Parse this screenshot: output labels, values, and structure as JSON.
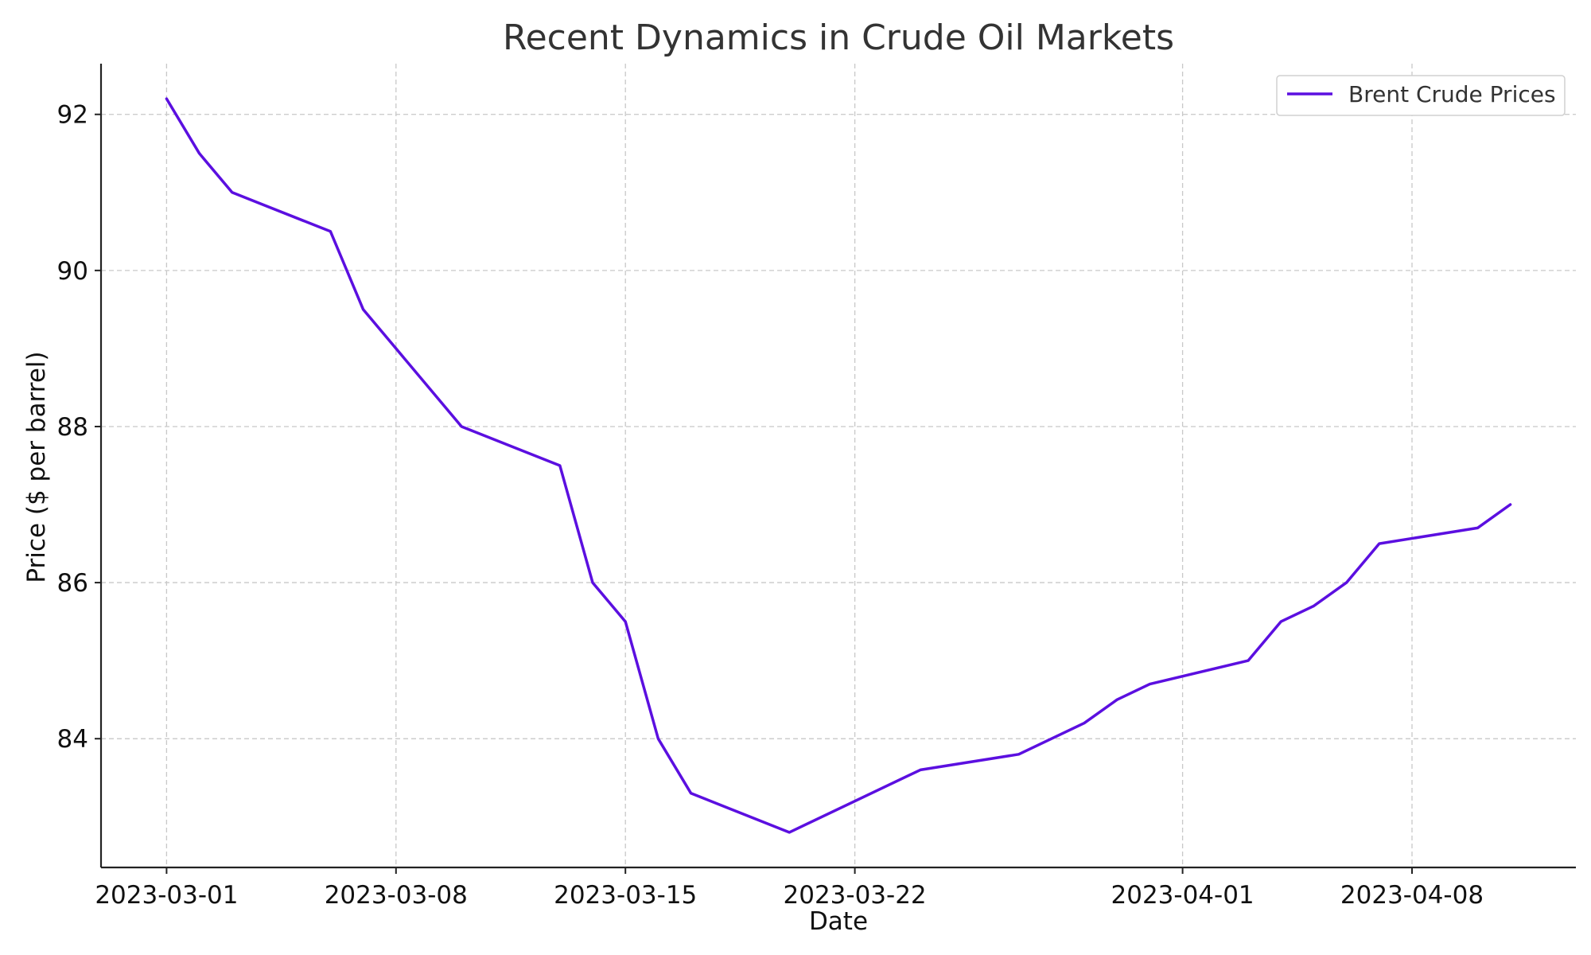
{
  "chart_data": {
    "type": "line",
    "title": "Recent Dynamics in Crude Oil Markets",
    "xlabel": "Date",
    "ylabel": "Price ($ per barrel)",
    "x_tick_labels": [
      "2023-03-01",
      "2023-03-08",
      "2023-03-15",
      "2023-03-22",
      "2023-04-01",
      "2023-04-08"
    ],
    "y_tick_labels": [
      "84",
      "86",
      "88",
      "90",
      "92"
    ],
    "xlim": [
      "2023-02-27",
      "2023-04-13"
    ],
    "ylim": [
      82.35,
      92.65
    ],
    "grid": true,
    "legend_position": "upper right",
    "series": [
      {
        "name": "Brent Crude Prices",
        "color": "#5b0fe0",
        "x": [
          "2023-03-01",
          "2023-03-02",
          "2023-03-03",
          "2023-03-06",
          "2023-03-07",
          "2023-03-08",
          "2023-03-10",
          "2023-03-13",
          "2023-03-14",
          "2023-03-15",
          "2023-03-16",
          "2023-03-17",
          "2023-03-20",
          "2023-03-24",
          "2023-03-27",
          "2023-03-29",
          "2023-03-30",
          "2023-03-31",
          "2023-04-03",
          "2023-04-04",
          "2023-04-05",
          "2023-04-06",
          "2023-04-07",
          "2023-04-10",
          "2023-04-11"
        ],
        "values": [
          92.2,
          91.5,
          91.0,
          90.5,
          89.5,
          89.0,
          88.0,
          87.5,
          86.0,
          85.5,
          84.0,
          83.3,
          82.8,
          83.6,
          83.8,
          84.2,
          84.5,
          84.7,
          85.0,
          85.5,
          85.7,
          86.0,
          86.5,
          86.7,
          87.0
        ]
      }
    ]
  }
}
